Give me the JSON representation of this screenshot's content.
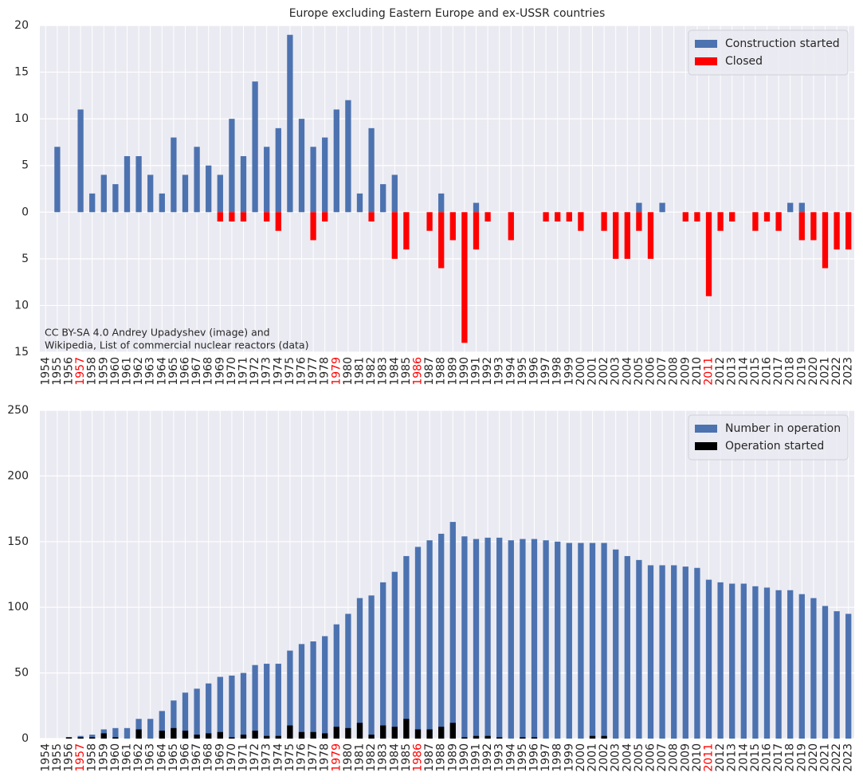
{
  "chart_data": [
    {
      "type": "bar",
      "title": "Europe excluding Eastern Europe and ex-USSR countries",
      "categories": [
        "1954",
        "1955",
        "1956",
        "1957",
        "1958",
        "1959",
        "1960",
        "1961",
        "1962",
        "1963",
        "1964",
        "1965",
        "1966",
        "1967",
        "1968",
        "1969",
        "1970",
        "1971",
        "1972",
        "1973",
        "1974",
        "1975",
        "1976",
        "1977",
        "1978",
        "1979",
        "1980",
        "1981",
        "1982",
        "1983",
        "1984",
        "1985",
        "1986",
        "1987",
        "1988",
        "1989",
        "1990",
        "1991",
        "1992",
        "1993",
        "1994",
        "1995",
        "1996",
        "1997",
        "1998",
        "1999",
        "2000",
        "2001",
        "2002",
        "2003",
        "2004",
        "2005",
        "2006",
        "2007",
        "2008",
        "2009",
        "2010",
        "2011",
        "2012",
        "2013",
        "2014",
        "2015",
        "2016",
        "2017",
        "2018",
        "2019",
        "2020",
        "2021",
        "2022",
        "2023"
      ],
      "series": [
        {
          "name": "Construction started",
          "color": "#4c72b0",
          "values": [
            0,
            7,
            0,
            11,
            2,
            4,
            3,
            6,
            6,
            4,
            2,
            8,
            4,
            7,
            5,
            4,
            10,
            6,
            14,
            7,
            9,
            19,
            10,
            7,
            8,
            11,
            12,
            2,
            9,
            3,
            4,
            0,
            0,
            0,
            2,
            0,
            0,
            1,
            0,
            0,
            0,
            0,
            0,
            0,
            0,
            0,
            0,
            0,
            0,
            0,
            0,
            1,
            0,
            1,
            0,
            0,
            0,
            0,
            0,
            0,
            0,
            0,
            0,
            0,
            1,
            1,
            0,
            0,
            0,
            0
          ]
        },
        {
          "name": "Closed",
          "color": "#ff0000",
          "values": [
            0,
            0,
            0,
            0,
            0,
            0,
            0,
            0,
            0,
            0,
            0,
            0,
            0,
            0,
            0,
            -1,
            -1,
            -1,
            0,
            -1,
            -2,
            0,
            0,
            -3,
            -1,
            0,
            0,
            0,
            -1,
            0,
            -5,
            -4,
            0,
            -2,
            -6,
            -3,
            -14,
            -4,
            -1,
            0,
            -3,
            0,
            0,
            -1,
            -1,
            -1,
            -2,
            0,
            -2,
            -5,
            -5,
            -2,
            -5,
            0,
            0,
            -1,
            -1,
            -9,
            -2,
            -1,
            0,
            -2,
            -1,
            -2,
            0,
            -3,
            -3,
            -6,
            -4,
            -4
          ]
        }
      ],
      "ylim": [
        -15,
        20
      ],
      "yticks": [
        {
          "value": -15,
          "label": "15"
        },
        {
          "value": -10,
          "label": "10"
        },
        {
          "value": -5,
          "label": "5"
        },
        0,
        5,
        10,
        15,
        20
      ],
      "grid": true,
      "legend": "upper right",
      "highlight": {
        "color": "#ff0000",
        "indices": [
          3,
          25,
          32,
          57
        ]
      },
      "annotation": [
        "CC BY-SA 4.0 Andrey Upadyshev (image) and",
        "Wikipedia, List of commercial nuclear reactors (data)"
      ]
    },
    {
      "type": "bar",
      "categories": [
        "1954",
        "1955",
        "1956",
        "1957",
        "1958",
        "1959",
        "1960",
        "1961",
        "1962",
        "1963",
        "1964",
        "1965",
        "1966",
        "1967",
        "1968",
        "1969",
        "1970",
        "1971",
        "1972",
        "1973",
        "1974",
        "1975",
        "1976",
        "1977",
        "1978",
        "1979",
        "1980",
        "1981",
        "1982",
        "1983",
        "1984",
        "1985",
        "1986",
        "1987",
        "1988",
        "1989",
        "1990",
        "1991",
        "1992",
        "1993",
        "1994",
        "1995",
        "1996",
        "1997",
        "1998",
        "1999",
        "2000",
        "2001",
        "2002",
        "2003",
        "2004",
        "2005",
        "2006",
        "2007",
        "2008",
        "2009",
        "2010",
        "2011",
        "2012",
        "2013",
        "2014",
        "2015",
        "2016",
        "2017",
        "2018",
        "2019",
        "2020",
        "2021",
        "2022",
        "2023"
      ],
      "series": [
        {
          "name": "Number in operation",
          "color": "#4c72b0",
          "values": [
            0,
            0,
            1,
            2,
            3,
            7,
            8,
            8,
            15,
            15,
            21,
            29,
            35,
            38,
            42,
            47,
            48,
            50,
            56,
            57,
            57,
            67,
            72,
            74,
            78,
            87,
            95,
            107,
            109,
            119,
            127,
            139,
            146,
            151,
            156,
            165,
            154,
            152,
            153,
            153,
            151,
            152,
            152,
            151,
            150,
            149,
            149,
            149,
            149,
            144,
            139,
            136,
            132,
            132,
            132,
            131,
            130,
            121,
            119,
            118,
            118,
            116,
            115,
            113,
            113,
            110,
            107,
            101,
            97,
            95
          ]
        },
        {
          "name": "Operation started",
          "color": "#000000",
          "values": [
            0,
            0,
            1,
            1,
            1,
            4,
            1,
            0,
            7,
            0,
            6,
            8,
            6,
            3,
            4,
            5,
            1,
            3,
            6,
            2,
            2,
            10,
            5,
            5,
            4,
            9,
            8,
            12,
            3,
            10,
            9,
            15,
            7,
            7,
            9,
            12,
            1,
            2,
            2,
            1,
            0,
            1,
            1,
            0,
            0,
            0,
            0,
            2,
            2,
            0,
            0,
            0,
            0,
            0,
            0,
            0,
            0,
            0,
            0,
            0,
            0,
            0,
            0,
            0,
            0,
            0,
            0,
            0,
            0,
            0
          ]
        }
      ],
      "ylim": [
        0,
        250
      ],
      "yticks": [
        0,
        50,
        100,
        150,
        200,
        250
      ],
      "grid": true,
      "legend": "upper right",
      "highlight": {
        "color": "#ff0000",
        "indices": [
          3,
          25,
          32,
          57
        ]
      }
    }
  ]
}
